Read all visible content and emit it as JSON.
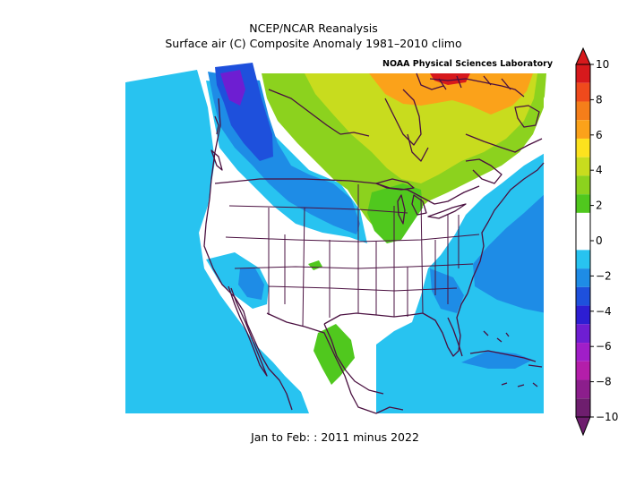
{
  "header": {
    "title_line1": "NCEP/NCAR Reanalysis",
    "title_line2": "Surface air (C) Composite Anomaly 1981–2010 climo",
    "credit": "NOAA Physical Sciences Laboratory"
  },
  "footer": {
    "caption": "Jan to Feb: : 2011 minus 2022"
  },
  "colorbar": {
    "tick_labels": [
      "10",
      "8",
      "6",
      "4",
      "2",
      "0",
      "−2",
      "−4",
      "−6",
      "−8",
      "−10"
    ],
    "colors_top_to_bottom": [
      "#d7191c",
      "#ef4a1c",
      "#f57e1a",
      "#fba21a",
      "#fde21e",
      "#c8dc1e",
      "#8cd21e",
      "#50c81e",
      "#ffffff",
      "#ffffff",
      "#28c3f0",
      "#1e8ce6",
      "#1e50dc",
      "#2d1ed2",
      "#6e1ed2",
      "#a01ec8",
      "#b41eaa",
      "#8c1e8c",
      "#6e1e6e"
    ]
  },
  "map": {
    "region": "North America",
    "anomaly_colors": {
      "light_blue": "#28c3f0",
      "medium_blue": "#1e8ce6",
      "dark_blue": "#1e50dc",
      "purple": "#6e1ed2",
      "green": "#50c81e",
      "yellow_green": "#8cd21e",
      "yellow": "#c8dc1e",
      "orange": "#fba21a",
      "red": "#d7191c",
      "boundary": "#4a1040"
    }
  }
}
